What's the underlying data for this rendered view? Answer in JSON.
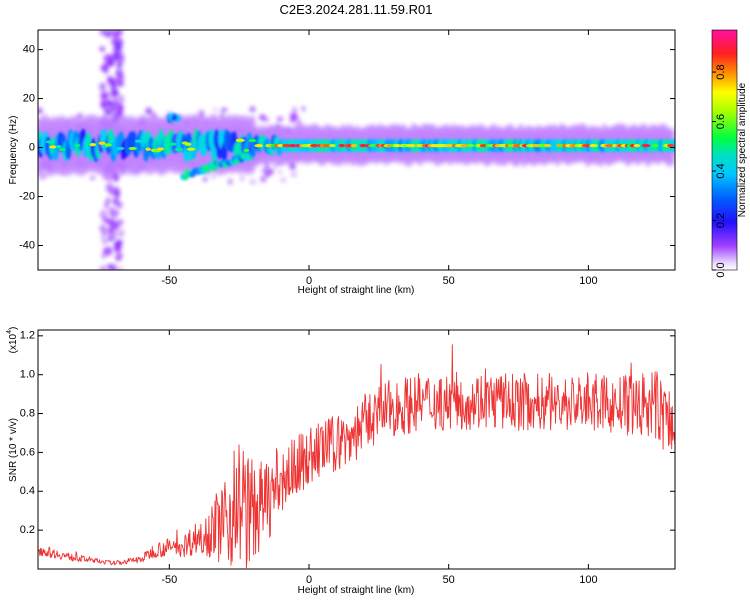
{
  "title": "C2E3.2024.281.11.59.R01",
  "chart_data": [
    {
      "type": "heatmap",
      "xlabel": "Height of straight line (km)",
      "ylabel": "Frequency (Hz)",
      "xlim": [
        -97,
        131
      ],
      "ylim": [
        -50,
        48
      ],
      "xticks": [
        -50,
        0,
        50,
        100
      ],
      "yticks": [
        -40,
        -20,
        0,
        20,
        40
      ],
      "colorbar": {
        "label": "Normalized spectral amplitude",
        "range": [
          0.0,
          0.97
        ],
        "ticks": [
          0.0,
          0.2,
          0.4,
          0.6,
          0.8
        ]
      },
      "features": [
        {
          "x_range": [
            -97,
            131
          ],
          "freq_center": 1,
          "note": "narrow band near 0 Hz, strongest (0.9+) from -10 to 131 km"
        },
        {
          "x_range": [
            -73,
            -69
          ],
          "freq_range": [
            -50,
            48
          ],
          "note": "weak broadband vertical streak"
        },
        {
          "x_range": [
            -50,
            -46
          ],
          "freq_center": 12,
          "note": "isolated patch"
        },
        {
          "x_range": [
            -45,
            -20
          ],
          "freq_center": -7,
          "note": "tilted lower branch"
        }
      ]
    },
    {
      "type": "line",
      "xlabel": "Height of straight line (km)",
      "ylabel": "SNR (10 * v/v)",
      "yscale_label": "(x10",
      "yscale_exp": "4",
      "xlim": [
        -97,
        131
      ],
      "ylim": [
        0,
        1.23
      ],
      "xticks": [
        -50,
        0,
        50,
        100
      ],
      "yticks": [
        0.2,
        0.4,
        0.6,
        0.8,
        1.0,
        1.2
      ],
      "color": "#ee3333",
      "envelope": {
        "x": [
          -97,
          -85,
          -70,
          -60,
          -55,
          -45,
          -38,
          -33,
          -30,
          -27,
          -25,
          -22,
          -19,
          -15,
          -12,
          -10,
          -8,
          -5,
          0,
          5,
          10,
          15,
          20,
          25,
          30,
          40,
          50,
          60,
          70,
          80,
          90,
          100,
          110,
          120,
          125,
          128,
          131
        ],
        "mean": [
          0.1,
          0.06,
          0.03,
          0.05,
          0.1,
          0.12,
          0.18,
          0.22,
          0.25,
          0.3,
          0.35,
          0.3,
          0.3,
          0.35,
          0.42,
          0.45,
          0.48,
          0.52,
          0.58,
          0.62,
          0.65,
          0.68,
          0.75,
          0.8,
          0.83,
          0.86,
          0.86,
          0.87,
          0.86,
          0.86,
          0.85,
          0.86,
          0.84,
          0.84,
          0.83,
          0.78,
          0.7
        ],
        "amp": [
          0.03,
          0.02,
          0.01,
          0.02,
          0.04,
          0.06,
          0.1,
          0.18,
          0.25,
          0.3,
          0.35,
          0.3,
          0.25,
          0.22,
          0.2,
          0.18,
          0.17,
          0.16,
          0.15,
          0.15,
          0.15,
          0.15,
          0.15,
          0.15,
          0.15,
          0.15,
          0.15,
          0.15,
          0.15,
          0.15,
          0.15,
          0.15,
          0.15,
          0.18,
          0.2,
          0.2,
          0.15
        ]
      }
    }
  ]
}
